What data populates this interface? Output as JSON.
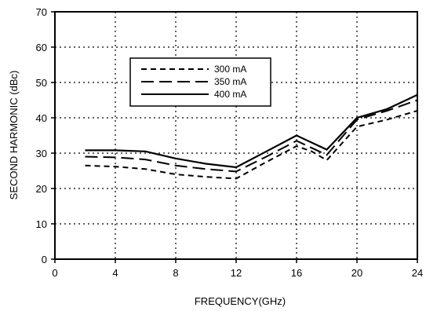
{
  "chart_data": {
    "type": "line",
    "title": "",
    "xlabel": "FREQUENCY(GHz)",
    "ylabel": "SECOND HARMONIC (dBc)",
    "xlim": [
      0,
      24
    ],
    "ylim": [
      0,
      70
    ],
    "xticks": [
      0,
      4,
      8,
      12,
      16,
      20,
      24
    ],
    "yticks": [
      0,
      10,
      20,
      30,
      40,
      50,
      60,
      70
    ],
    "grid": true,
    "grid_style": "dotted",
    "legend_position": "upper-left-center",
    "series": [
      {
        "name": "300 mA",
        "style": "short-dash",
        "color": "#000000",
        "x": [
          2,
          4,
          6,
          8,
          10,
          12,
          14,
          16,
          17,
          18,
          20,
          22,
          24
        ],
        "y": [
          26.5,
          26.2,
          25.5,
          24,
          23.3,
          22.8,
          27.5,
          32,
          30.5,
          28,
          37.5,
          39.5,
          42
        ]
      },
      {
        "name": "350 mA",
        "style": "long-dash",
        "color": "#000000",
        "x": [
          2,
          4,
          6,
          8,
          10,
          12,
          14,
          16,
          18,
          20,
          22,
          24
        ],
        "y": [
          29,
          28.8,
          28.2,
          26.5,
          25.5,
          24.8,
          29,
          33.5,
          29.5,
          39.5,
          42,
          45
        ]
      },
      {
        "name": "400 mA",
        "style": "solid",
        "color": "#000000",
        "x": [
          2,
          4,
          6,
          8,
          10,
          12,
          14,
          16,
          18,
          20,
          22,
          24
        ],
        "y": [
          30.8,
          30.8,
          30.5,
          28.5,
          27,
          26,
          30.5,
          35,
          31,
          40,
          42.5,
          46.5
        ]
      }
    ]
  }
}
